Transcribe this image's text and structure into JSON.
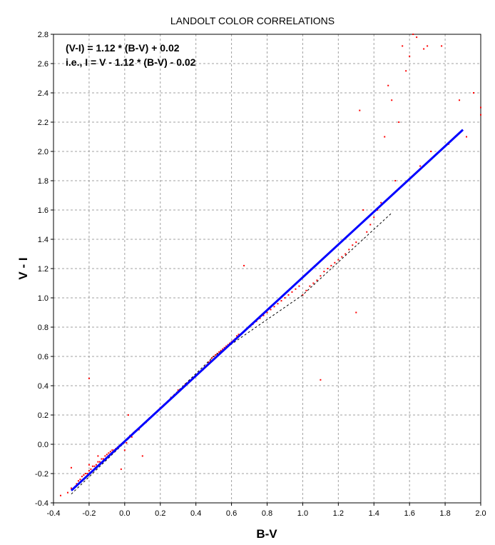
{
  "chart_data": {
    "type": "scatter",
    "title": "LANDOLT COLOR CORRELATIONS",
    "xlabel": "B-V",
    "ylabel": "V - I",
    "xlim": [
      -0.4,
      2.0
    ],
    "ylim": [
      -0.4,
      2.8
    ],
    "x_ticks": [
      "-0.4",
      "-0.2",
      "0.0",
      "0.2",
      "0.4",
      "0.6",
      "0.8",
      "1.0",
      "1.2",
      "1.4",
      "1.6",
      "1.8",
      "2.0"
    ],
    "y_ticks": [
      "-0.4",
      "-0.2",
      "0.0",
      "0.2",
      "0.4",
      "0.6",
      "0.8",
      "1.0",
      "1.2",
      "1.4",
      "1.6",
      "1.8",
      "2.0",
      "2.2",
      "2.4",
      "2.6",
      "2.8"
    ],
    "grid": true,
    "annotations": [
      "(V-I) = 1.12 * (B-V) + 0.02",
      "i.e., I = V - 1.12 * (B-V) - 0.02"
    ],
    "fit_line": {
      "slope": 1.12,
      "intercept": 0.02,
      "x_range": [
        -0.3,
        1.9
      ],
      "color": "#0000ff"
    },
    "trend_line": {
      "points": [
        [
          -0.3,
          -0.34
        ],
        [
          0.5,
          0.6
        ],
        [
          1.0,
          1.02
        ],
        [
          1.5,
          1.58
        ]
      ],
      "color": "#000000",
      "style": "dashed"
    },
    "point_color": "#ff0000",
    "series": [
      {
        "values": [
          [
            -0.36,
            -0.35
          ],
          [
            -0.32,
            -0.33
          ],
          [
            -0.3,
            -0.3
          ],
          [
            -0.3,
            -0.16
          ],
          [
            -0.28,
            -0.29
          ],
          [
            -0.27,
            -0.27
          ],
          [
            -0.26,
            -0.25
          ],
          [
            -0.25,
            -0.24
          ],
          [
            -0.24,
            -0.22
          ],
          [
            -0.23,
            -0.21
          ],
          [
            -0.22,
            -0.2
          ],
          [
            -0.21,
            -0.2
          ],
          [
            -0.2,
            -0.18
          ],
          [
            -0.2,
            -0.14
          ],
          [
            -0.2,
            0.45
          ],
          [
            -0.19,
            -0.17
          ],
          [
            -0.18,
            -0.15
          ],
          [
            -0.17,
            -0.15
          ],
          [
            -0.16,
            -0.14
          ],
          [
            -0.15,
            -0.12
          ],
          [
            -0.15,
            -0.08
          ],
          [
            -0.14,
            -0.12
          ],
          [
            -0.13,
            -0.1
          ],
          [
            -0.12,
            -0.1
          ],
          [
            -0.11,
            -0.08
          ],
          [
            -0.1,
            -0.07
          ],
          [
            -0.09,
            -0.06
          ],
          [
            -0.08,
            -0.05
          ],
          [
            -0.07,
            -0.04
          ],
          [
            -0.06,
            -0.04
          ],
          [
            -0.05,
            -0.03
          ],
          [
            -0.04,
            -0.02
          ],
          [
            -0.03,
            -0.01
          ],
          [
            -0.02,
            0.0
          ],
          [
            -0.02,
            -0.17
          ],
          [
            -0.01,
            0.01
          ],
          [
            0.0,
            0.02
          ],
          [
            0.0,
            -0.04
          ],
          [
            0.01,
            0.01
          ],
          [
            0.02,
            0.2
          ],
          [
            0.02,
            0.04
          ],
          [
            0.03,
            0.06
          ],
          [
            0.04,
            0.05
          ],
          [
            0.05,
            0.08
          ],
          [
            0.06,
            0.09
          ],
          [
            0.08,
            0.1
          ],
          [
            0.1,
            0.13
          ],
          [
            0.1,
            -0.08
          ],
          [
            0.12,
            0.15
          ],
          [
            0.14,
            0.18
          ],
          [
            0.16,
            0.2
          ],
          [
            0.18,
            0.22
          ],
          [
            0.2,
            0.25
          ],
          [
            0.22,
            0.27
          ],
          [
            0.24,
            0.29
          ],
          [
            0.26,
            0.32
          ],
          [
            0.28,
            0.34
          ],
          [
            0.3,
            0.37
          ],
          [
            0.32,
            0.38
          ],
          [
            0.34,
            0.41
          ],
          [
            0.36,
            0.43
          ],
          [
            0.38,
            0.45
          ],
          [
            0.4,
            0.47
          ],
          [
            0.42,
            0.49
          ],
          [
            0.44,
            0.51
          ],
          [
            0.45,
            0.53
          ],
          [
            0.46,
            0.54
          ],
          [
            0.47,
            0.56
          ],
          [
            0.48,
            0.57
          ],
          [
            0.49,
            0.59
          ],
          [
            0.5,
            0.6
          ],
          [
            0.51,
            0.61
          ],
          [
            0.52,
            0.62
          ],
          [
            0.53,
            0.63
          ],
          [
            0.54,
            0.64
          ],
          [
            0.55,
            0.65
          ],
          [
            0.56,
            0.66
          ],
          [
            0.57,
            0.67
          ],
          [
            0.58,
            0.68
          ],
          [
            0.59,
            0.69
          ],
          [
            0.6,
            0.7
          ],
          [
            0.61,
            0.71
          ],
          [
            0.62,
            0.72
          ],
          [
            0.63,
            0.74
          ],
          [
            0.64,
            0.75
          ],
          [
            0.65,
            0.75
          ],
          [
            0.66,
            0.76
          ],
          [
            0.67,
            1.22
          ],
          [
            0.68,
            0.78
          ],
          [
            0.7,
            0.8
          ],
          [
            0.72,
            0.82
          ],
          [
            0.74,
            0.84
          ],
          [
            0.76,
            0.86
          ],
          [
            0.78,
            0.88
          ],
          [
            0.8,
            0.9
          ],
          [
            0.82,
            0.92
          ],
          [
            0.84,
            0.94
          ],
          [
            0.86,
            0.96
          ],
          [
            0.88,
            0.98
          ],
          [
            0.9,
            1.0
          ],
          [
            0.92,
            1.02
          ],
          [
            0.94,
            1.04
          ],
          [
            0.96,
            1.06
          ],
          [
            0.98,
            1.08
          ],
          [
            1.0,
            1.02
          ],
          [
            1.02,
            1.05
          ],
          [
            1.04,
            1.08
          ],
          [
            1.06,
            1.1
          ],
          [
            1.08,
            1.12
          ],
          [
            1.1,
            1.15
          ],
          [
            1.1,
            0.44
          ],
          [
            1.12,
            1.18
          ],
          [
            1.14,
            1.2
          ],
          [
            1.16,
            1.22
          ],
          [
            1.18,
            1.24
          ],
          [
            1.2,
            1.26
          ],
          [
            1.22,
            1.28
          ],
          [
            1.24,
            1.3
          ],
          [
            1.26,
            1.33
          ],
          [
            1.28,
            1.36
          ],
          [
            1.3,
            1.38
          ],
          [
            1.3,
            0.9
          ],
          [
            1.32,
            2.28
          ],
          [
            1.34,
            1.6
          ],
          [
            1.36,
            1.45
          ],
          [
            1.38,
            1.5
          ],
          [
            1.4,
            1.55
          ],
          [
            1.42,
            1.6
          ],
          [
            1.44,
            1.65
          ],
          [
            1.46,
            2.1
          ],
          [
            1.48,
            2.45
          ],
          [
            1.5,
            2.35
          ],
          [
            1.52,
            1.8
          ],
          [
            1.54,
            2.2
          ],
          [
            1.56,
            2.72
          ],
          [
            1.58,
            2.55
          ],
          [
            1.6,
            2.65
          ],
          [
            1.62,
            2.8
          ],
          [
            1.64,
            2.78
          ],
          [
            1.66,
            1.9
          ],
          [
            1.68,
            2.7
          ],
          [
            1.7,
            2.72
          ],
          [
            1.72,
            2.0
          ],
          [
            1.78,
            2.72
          ],
          [
            1.82,
            2.05
          ],
          [
            1.88,
            2.35
          ],
          [
            1.92,
            2.1
          ],
          [
            1.96,
            2.4
          ],
          [
            2.0,
            2.3
          ],
          [
            2.0,
            2.25
          ]
        ]
      }
    ]
  }
}
